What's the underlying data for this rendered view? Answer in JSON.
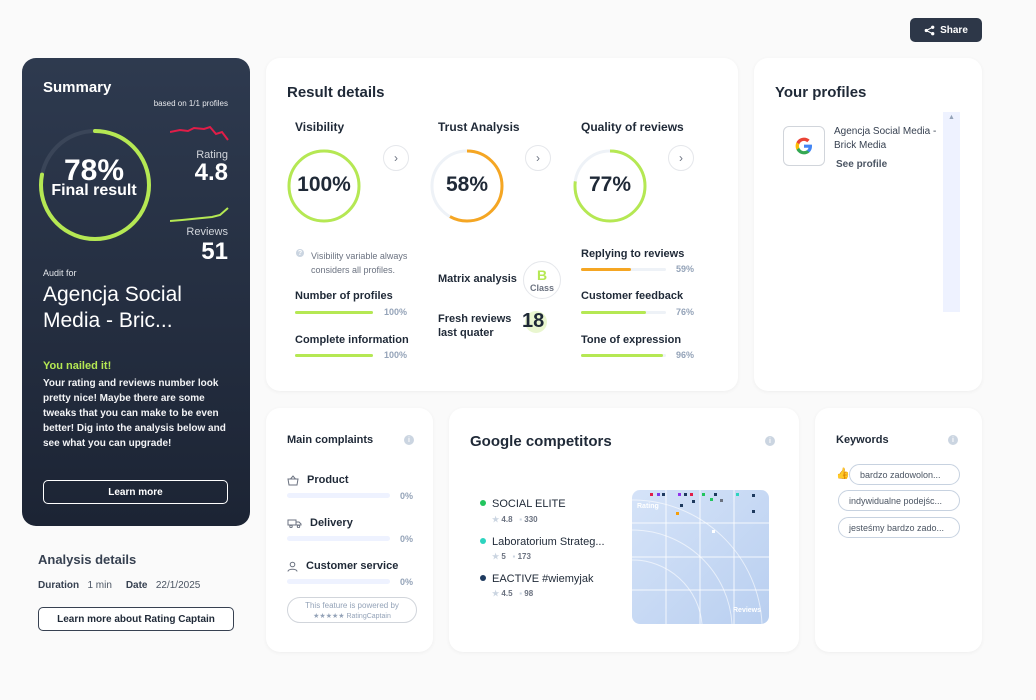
{
  "share": {
    "label": "Share"
  },
  "summary": {
    "title": "Summary",
    "based_on": "based on 1/1 profiles",
    "final_pct": "78%",
    "final_label": "Final result",
    "final_value": 0.78,
    "rating_label": "Rating",
    "rating_value": "4.8",
    "reviews_label": "Reviews",
    "reviews_value": "51",
    "audit_for": "Audit for",
    "company": "Agencja Social Media - Bric...",
    "nailed_title": "You nailed it!",
    "nailed_text": "Your rating and reviews number look pretty nice! Maybe there are some tweaks that you can make to be even better! Dig into the analysis below and see what you can upgrade!",
    "learn_more": "Learn more",
    "ring_color": "#b5e853",
    "spark_rating_color": "#e11d48",
    "spark_reviews_color": "#b5e853"
  },
  "analysis": {
    "title": "Analysis details",
    "duration_label": "Duration",
    "duration_value": "1 min",
    "date_label": "Date",
    "date_value": "22/1/2025",
    "button": "Learn more about Rating Captain"
  },
  "result": {
    "title": "Result details",
    "visibility": {
      "title": "Visibility",
      "pct": "100%",
      "value": 1.0,
      "color": "#b5e853",
      "note": "Visibility variable always considers all profiles.",
      "metrics": [
        {
          "label": "Number of profiles",
          "pct": "100%",
          "value": 1.0
        },
        {
          "label": "Complete information",
          "pct": "100%",
          "value": 1.0
        }
      ]
    },
    "trust": {
      "title": "Trust Analysis",
      "pct": "58%",
      "value": 0.58,
      "color": "#f5a623",
      "matrix_label": "Matrix analysis",
      "matrix_grade": "B",
      "matrix_class": "Class",
      "fresh_label": "Fresh reviews last quater",
      "fresh_value": "18"
    },
    "quality": {
      "title": "Quality of reviews",
      "pct": "77%",
      "value": 0.77,
      "color": "#b5e853",
      "metrics": [
        {
          "label": "Replying to reviews",
          "pct": "59%",
          "value": 0.59,
          "color": "#f5a623"
        },
        {
          "label": "Customer feedback",
          "pct": "76%",
          "value": 0.76,
          "color": "#b5e853"
        },
        {
          "label": "Tone of expression",
          "pct": "96%",
          "value": 0.96,
          "color": "#b5e853"
        }
      ]
    }
  },
  "profiles": {
    "title": "Your profiles",
    "items": [
      {
        "name": "Agencja Social Media - Brick Media",
        "link": "See profile",
        "icon": "google-icon"
      }
    ]
  },
  "complaints": {
    "title": "Main complaints",
    "items": [
      {
        "label": "Product",
        "pct": "0%",
        "icon": "basket-icon"
      },
      {
        "label": "Delivery",
        "pct": "0%",
        "icon": "truck-icon"
      },
      {
        "label": "Customer service",
        "pct": "0%",
        "icon": "person-icon"
      }
    ],
    "powered_line1": "This feature is powered by",
    "powered_line2": "★★★★★ RatingCaptain"
  },
  "competitors": {
    "title": "Google competitors",
    "items": [
      {
        "name": "SOCIAL ELITE",
        "rating": "4.8",
        "reviews": "330",
        "color": "#22c55e"
      },
      {
        "name": "Laboratorium Strateg...",
        "rating": "5",
        "reviews": "173",
        "color": "#2dd4bf"
      },
      {
        "name": "EACTIVE #wiemyjak",
        "rating": "4.5",
        "reviews": "98",
        "color": "#1e3a5f"
      }
    ],
    "map_x_label": "Reviews",
    "map_y_label": "Rating"
  },
  "keywords": {
    "title": "Keywords",
    "items": [
      "bardzo zadowolon...",
      "indywidualne podejśc...",
      "jesteśmy bardzo zado..."
    ]
  }
}
